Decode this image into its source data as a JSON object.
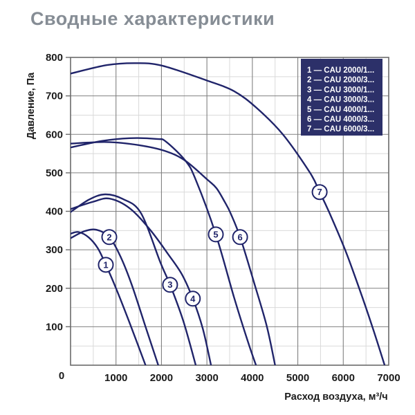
{
  "page": {
    "title": "Сводные характеристики"
  },
  "chart_data": {
    "type": "line",
    "title": "Сводные характеристики",
    "xlabel": "Расход воздуха, м³/ч",
    "ylabel": "Давление, Па",
    "xlim": [
      0,
      7000
    ],
    "ylim": [
      0,
      800
    ],
    "x_ticks": [
      1000,
      2000,
      3000,
      4000,
      5000,
      6000,
      7000
    ],
    "y_ticks": [
      100,
      200,
      300,
      400,
      500,
      600,
      700,
      800
    ],
    "origin_label": "0",
    "x_minor_step": 500,
    "y_minor_step": 50,
    "grid": true,
    "legend_position": "top-right",
    "colors": {
      "curve": "#20246a",
      "legend_bg": "#2c3069",
      "legend_text": "#ffffff",
      "grid_major": "#808080",
      "grid_minor": "#d9d9d9",
      "frame": "#6b6b6b",
      "title": "#868d95"
    },
    "legend": [
      {
        "num": "1",
        "label": "CAU 2000/1..."
      },
      {
        "num": "2",
        "label": "CAU 2000/3..."
      },
      {
        "num": "3",
        "label": "CAU 3000/1..."
      },
      {
        "num": "4",
        "label": "CAU 3000/3..."
      },
      {
        "num": "5",
        "label": "CAU 4000/1..."
      },
      {
        "num": "6",
        "label": "CAU 4000/3..."
      },
      {
        "num": "7",
        "label": "CAU 6000/3..."
      }
    ],
    "series": [
      {
        "num": "1",
        "name": "CAU 2000/1...",
        "marker": {
          "x": 776,
          "y": 261
        },
        "points": [
          [
            0,
            342
          ],
          [
            180,
            346
          ],
          [
            400,
            332
          ],
          [
            600,
            304
          ],
          [
            776,
            261
          ],
          [
            1000,
            200
          ],
          [
            1300,
            110
          ],
          [
            1650,
            0
          ]
        ]
      },
      {
        "num": "2",
        "name": "CAU 2000/3...",
        "marker": {
          "x": 852,
          "y": 333
        },
        "points": [
          [
            0,
            330
          ],
          [
            300,
            348
          ],
          [
            570,
            352
          ],
          [
            852,
            333
          ],
          [
            1100,
            282
          ],
          [
            1350,
            208
          ],
          [
            1650,
            100
          ],
          [
            1930,
            0
          ]
        ]
      },
      {
        "num": "3",
        "name": "CAU 3000/1...",
        "marker": {
          "x": 2190,
          "y": 209
        },
        "points": [
          [
            0,
            398
          ],
          [
            400,
            430
          ],
          [
            760,
            444
          ],
          [
            1150,
            432
          ],
          [
            1550,
            395
          ],
          [
            1980,
            266
          ],
          [
            2190,
            209
          ],
          [
            2480,
            115
          ],
          [
            2755,
            0
          ]
        ]
      },
      {
        "num": "4",
        "name": "CAU 3000/3...",
        "marker": {
          "x": 2690,
          "y": 173
        },
        "points": [
          [
            0,
            406
          ],
          [
            500,
            425
          ],
          [
            852,
            433
          ],
          [
            1300,
            408
          ],
          [
            1750,
            352
          ],
          [
            2150,
            288
          ],
          [
            2450,
            236
          ],
          [
            2690,
            173
          ],
          [
            2910,
            95
          ],
          [
            3090,
            0
          ]
        ]
      },
      {
        "num": "5",
        "name": "CAU 4000/1...",
        "marker": {
          "x": 3196,
          "y": 340
        },
        "points": [
          [
            0,
            566
          ],
          [
            700,
            583
          ],
          [
            1300,
            590
          ],
          [
            1900,
            588
          ],
          [
            2100,
            581
          ],
          [
            2530,
            531
          ],
          [
            2755,
            482
          ],
          [
            3196,
            340
          ],
          [
            3600,
            175
          ],
          [
            3900,
            62
          ],
          [
            4080,
            0
          ]
        ]
      },
      {
        "num": "6",
        "name": "CAU 4000/3...",
        "marker": {
          "x": 3730,
          "y": 333
        },
        "points": [
          [
            0,
            576
          ],
          [
            800,
            580
          ],
          [
            1500,
            572
          ],
          [
            2100,
            556
          ],
          [
            2530,
            531
          ],
          [
            3013,
            482
          ],
          [
            3211,
            460
          ],
          [
            3394,
            424
          ],
          [
            3516,
            396
          ],
          [
            3730,
            333
          ],
          [
            4050,
            210
          ],
          [
            4320,
            100
          ],
          [
            4500,
            0
          ]
        ]
      },
      {
        "num": "7",
        "name": "CAU 6000/3...",
        "marker": {
          "x": 5480,
          "y": 450
        },
        "points": [
          [
            0,
            758
          ],
          [
            800,
            780
          ],
          [
            1400,
            785
          ],
          [
            2000,
            779
          ],
          [
            3000,
            740
          ],
          [
            3600,
            712
          ],
          [
            4100,
            668
          ],
          [
            4670,
            600
          ],
          [
            5270,
            500
          ],
          [
            5480,
            450
          ],
          [
            5680,
            400
          ],
          [
            6040,
            300
          ],
          [
            6350,
            200
          ],
          [
            6640,
            100
          ],
          [
            6910,
            0
          ]
        ]
      }
    ]
  }
}
